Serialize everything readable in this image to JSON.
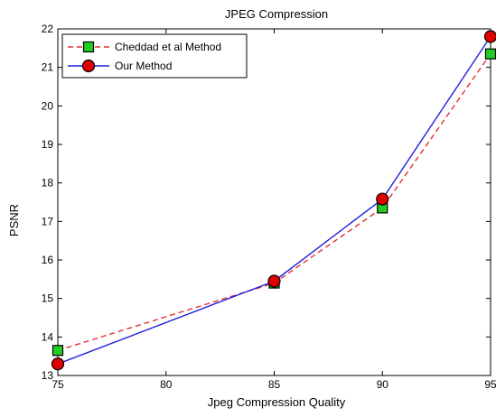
{
  "chart_data": {
    "type": "line",
    "title": "JPEG Compression",
    "xlabel": "Jpeg Compression Quality",
    "ylabel": "PSNR",
    "xlim": [
      75,
      95
    ],
    "ylim": [
      13,
      22
    ],
    "xticks": [
      75,
      80,
      85,
      90,
      95
    ],
    "yticks": [
      13,
      14,
      15,
      16,
      17,
      18,
      19,
      20,
      21,
      22
    ],
    "grid": false,
    "legend_position": "top-left",
    "x": [
      75,
      85,
      90,
      95
    ],
    "series": [
      {
        "name": "Cheddad et al Method",
        "values": [
          13.65,
          15.4,
          17.35,
          21.35
        ],
        "line_color": "#e03030",
        "line_style": "dashed",
        "marker": "square",
        "marker_color": "#22cc22"
      },
      {
        "name": "Our Method",
        "values": [
          13.3,
          15.45,
          17.58,
          21.8
        ],
        "line_color": "#2020dd",
        "line_style": "solid",
        "marker": "circle",
        "marker_color": "#e00000"
      }
    ]
  }
}
